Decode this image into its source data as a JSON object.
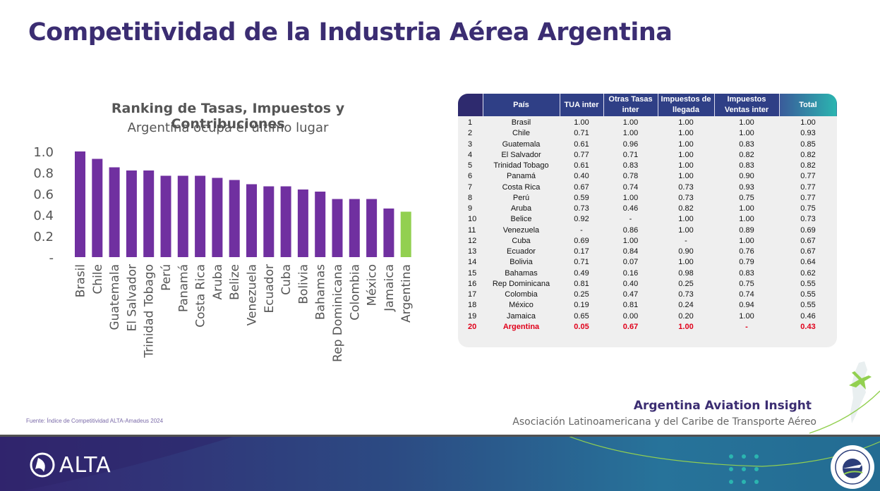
{
  "page": {
    "title": "Competitividad de la Industria Aérea Argentina",
    "source": "Fuente: Índice de Competitividad ALTA-Amadeus 2024",
    "brand_title": "Argentina Aviation Insight",
    "brand_subtitle": "Asociación Latinoamericana y del Caribe de Transporte Aéreo",
    "footer_logo_text": "ALTA",
    "badge_icon": "juntos-tomamos-altura-badge-icon"
  },
  "colors": {
    "title": "#3b2d72",
    "bar": "#7030a0",
    "bar_highlight": "#92d050",
    "table_header_dark": "#2e2a6e",
    "table_header_teal": "#2bb5b0",
    "highlight_text": "#e0001a"
  },
  "chart_data": {
    "type": "bar",
    "title": "Ranking de Tasas, Impuestos y Contribuciones",
    "subtitle": "Argentina ocupa el último lugar",
    "categories": [
      "Brasil",
      "Chile",
      "Guatemala",
      "El Salvador",
      "Trinidad Tobago",
      "Perú",
      "Panamá",
      "Costa Rica",
      "Aruba",
      "Belize",
      "Venezuela",
      "Ecuador",
      "Cuba",
      "Bolivia",
      "Bahamas",
      "Rep Dominicana",
      "Colombia",
      "México",
      "Jamaica",
      "Argentina"
    ],
    "values": [
      1.0,
      0.93,
      0.85,
      0.82,
      0.82,
      0.77,
      0.77,
      0.77,
      0.75,
      0.73,
      0.69,
      0.67,
      0.67,
      0.64,
      0.62,
      0.55,
      0.55,
      0.55,
      0.46,
      0.43
    ],
    "highlight": "Argentina",
    "ylim": [
      0,
      1.0
    ],
    "yticks": [
      "-",
      "0.2",
      "0.4",
      "0.6",
      "0.8",
      "1.0"
    ],
    "ytick_values": [
      0,
      0.2,
      0.4,
      0.6,
      0.8,
      1.0
    ],
    "grid": false,
    "legend": "none"
  },
  "table": {
    "headers": [
      "",
      "País",
      "TUA inter",
      "Otras Tasas inter",
      "Impuestos de llegada",
      "Impuestos Ventas inter",
      "Total"
    ],
    "rows": [
      [
        "1",
        "Brasil",
        "1.00",
        "1.00",
        "1.00",
        "1.00",
        "1.00"
      ],
      [
        "2",
        "Chile",
        "0.71",
        "1.00",
        "1.00",
        "1.00",
        "0.93"
      ],
      [
        "3",
        "Guatemala",
        "0.61",
        "0.96",
        "1.00",
        "0.83",
        "0.85"
      ],
      [
        "4",
        "El Salvador",
        "0.77",
        "0.71",
        "1.00",
        "0.82",
        "0.82"
      ],
      [
        "5",
        "Trinidad Tobago",
        "0.61",
        "0.83",
        "1.00",
        "0.83",
        "0.82"
      ],
      [
        "6",
        "Panamá",
        "0.40",
        "0.78",
        "1.00",
        "0.90",
        "0.77"
      ],
      [
        "7",
        "Costa Rica",
        "0.67",
        "0.74",
        "0.73",
        "0.93",
        "0.77"
      ],
      [
        "8",
        "Perú",
        "0.59",
        "1.00",
        "0.73",
        "0.75",
        "0.77"
      ],
      [
        "9",
        "Aruba",
        "0.73",
        "0.46",
        "0.82",
        "1.00",
        "0.75"
      ],
      [
        "10",
        "Belice",
        "0.92",
        "-",
        "1.00",
        "1.00",
        "0.73"
      ],
      [
        "11",
        "Venezuela",
        "-",
        "0.86",
        "1.00",
        "0.89",
        "0.69"
      ],
      [
        "12",
        "Cuba",
        "0.69",
        "1.00",
        "-",
        "1.00",
        "0.67"
      ],
      [
        "13",
        "Ecuador",
        "0.17",
        "0.84",
        "0.90",
        "0.76",
        "0.67"
      ],
      [
        "14",
        "Bolivia",
        "0.71",
        "0.07",
        "1.00",
        "0.79",
        "0.64"
      ],
      [
        "15",
        "Bahamas",
        "0.49",
        "0.16",
        "0.98",
        "0.83",
        "0.62"
      ],
      [
        "16",
        "Rep Dominicana",
        "0.81",
        "0.40",
        "0.25",
        "0.75",
        "0.55"
      ],
      [
        "17",
        "Colombia",
        "0.25",
        "0.47",
        "0.73",
        "0.74",
        "0.55"
      ],
      [
        "18",
        "México",
        "0.19",
        "0.81",
        "0.24",
        "0.94",
        "0.55"
      ],
      [
        "19",
        "Jamaica",
        "0.65",
        "0.00",
        "0.20",
        "1.00",
        "0.46"
      ],
      [
        "20",
        "Argentina",
        "0.05",
        "0.67",
        "1.00",
        "-",
        "0.43"
      ]
    ],
    "highlight_row": 19
  }
}
